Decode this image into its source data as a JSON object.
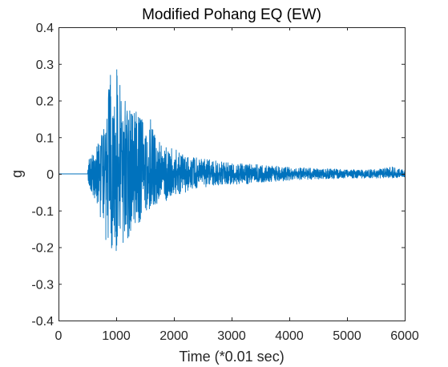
{
  "chart_data": {
    "type": "line",
    "title": "Modified Pohang EQ (EW)",
    "xlabel": "Time (*0.01 sec)",
    "ylabel": "g",
    "xlim": [
      0,
      6000
    ],
    "ylim": [
      -0.4,
      0.4
    ],
    "xticks": [
      0,
      1000,
      2000,
      3000,
      4000,
      5000,
      6000
    ],
    "xtick_labels": [
      "0",
      "1000",
      "2000",
      "3000",
      "4000",
      "5000",
      "6000"
    ],
    "yticks": [
      -0.4,
      -0.3,
      -0.2,
      -0.1,
      0,
      0.1,
      0.2,
      0.3,
      0.4
    ],
    "ytick_labels": [
      "-0.4",
      "-0.3",
      "-0.2",
      "-0.1",
      "0",
      "0.1",
      "0.2",
      "0.3",
      "0.4"
    ],
    "grid": false,
    "legend": "none",
    "series": [
      {
        "color": "#0072bd",
        "envelope": {
          "x": [
            0,
            500,
            520,
            600,
            700,
            800,
            900,
            950,
            1000,
            1100,
            1200,
            1300,
            1400,
            1500,
            1600,
            1700,
            1800,
            1900,
            2000,
            2200,
            2400,
            2600,
            2800,
            3000,
            3500,
            4000,
            4500,
            5000,
            5500,
            5800,
            5900,
            6000
          ],
          "upper": [
            0,
            0,
            0.05,
            0.06,
            0.09,
            0.14,
            0.27,
            0.18,
            0.285,
            0.22,
            0.19,
            0.17,
            0.18,
            0.12,
            0.15,
            0.1,
            0.08,
            0.07,
            0.07,
            0.05,
            0.045,
            0.04,
            0.035,
            0.03,
            0.025,
            0.018,
            0.015,
            0.012,
            0.012,
            0.02,
            0.015,
            0.01
          ],
          "lower": [
            0,
            0,
            -0.03,
            -0.06,
            -0.1,
            -0.17,
            -0.2,
            -0.21,
            -0.21,
            -0.19,
            -0.18,
            -0.16,
            -0.14,
            -0.12,
            -0.1,
            -0.09,
            -0.08,
            -0.07,
            -0.06,
            -0.05,
            -0.04,
            -0.035,
            -0.03,
            -0.03,
            -0.025,
            -0.018,
            -0.015,
            -0.012,
            -0.012,
            -0.012,
            -0.01,
            -0.01
          ]
        },
        "peaks": [
          {
            "x": 900,
            "y": 0.27
          },
          {
            "x": 1010,
            "y": 0.285
          },
          {
            "x": 1000,
            "y": -0.21
          },
          {
            "x": 820,
            "y": -0.18
          }
        ]
      }
    ]
  }
}
